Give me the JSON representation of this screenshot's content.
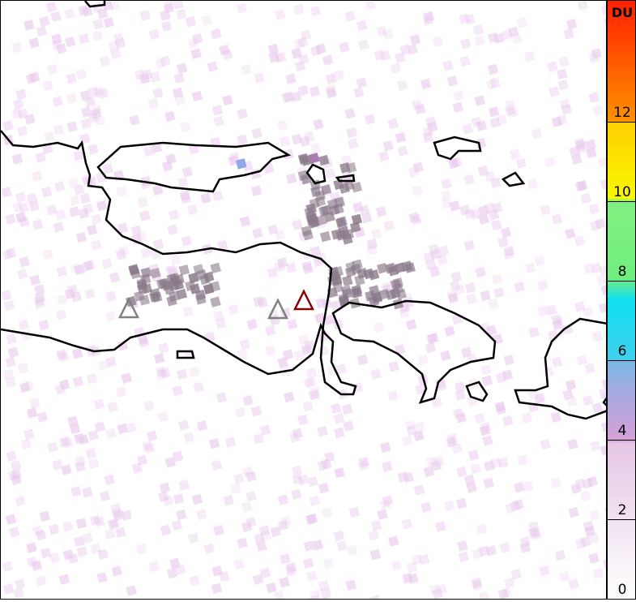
{
  "colorbar": {
    "unit": "DU",
    "ticks": [
      "0",
      "2",
      "4",
      "6",
      "8",
      "10",
      "12"
    ],
    "range": [
      0,
      15
    ],
    "colors": [
      "#ffffff",
      "#e6c6e6",
      "#d6a0d8",
      "#7ab8e4",
      "#10e0f0",
      "#80f080",
      "#f8f800",
      "#ff9000",
      "#ff2000"
    ]
  },
  "markers": {
    "volcano_colors": {
      "inactive": "#808080",
      "active": "#8b0000"
    }
  },
  "coast_color": "#000000"
}
